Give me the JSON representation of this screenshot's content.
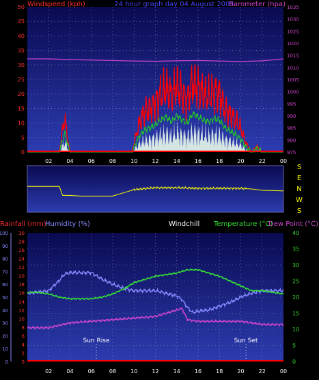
{
  "colors": {
    "bg": "#000000",
    "plot_top": "#0a0a50",
    "plot_bottom": "#2a3aa8",
    "wind": "#ff0000",
    "gust_fill": "#e8f8e8",
    "green": "#22cc22",
    "baro": "#cc44cc",
    "dir": "#ffff00",
    "axis_red": "#ff3030",
    "axis_blue": "#8888ff",
    "axis_green": "#33dd33",
    "windchill": "#ffffff",
    "zero": "#ff0000"
  },
  "x_ticks": [
    "02",
    "04",
    "06",
    "08",
    "10",
    "12",
    "14",
    "16",
    "18",
    "20",
    "22",
    "00"
  ],
  "top": {
    "title_left": "Windspeed (kph)",
    "title_center": "24 hour graph day 04 August 2005",
    "title_right": "Barometer (hpa)",
    "left_ticks": [
      "0",
      "5",
      "10",
      "15",
      "20",
      "25",
      "30",
      "35",
      "40",
      "45",
      "50"
    ],
    "right_ticks": [
      "975",
      "980",
      "985",
      "990",
      "995",
      "1000",
      "1005",
      "1010",
      "1015",
      "1020",
      "1025",
      "1030",
      "1035"
    ]
  },
  "compass": {
    "labels": [
      "S",
      "E",
      "N",
      "W",
      "S"
    ]
  },
  "bottom": {
    "title_rain": "Rainfall (mm)",
    "title_hum": "Humidity (%)",
    "title_wc": "Windchill",
    "title_temp": "Temperature (°C)",
    "title_dew": "Dew Point (°C)",
    "hum_ticks": [
      "0",
      "10",
      "20",
      "30",
      "40",
      "50",
      "60",
      "70",
      "80",
      "90",
      "100"
    ],
    "rain_ticks": [
      "0",
      "2",
      "4",
      "6",
      "8",
      "10",
      "12",
      "14",
      "16",
      "18",
      "20",
      "22",
      "24",
      "26",
      "28",
      "30"
    ],
    "temp_ticks": [
      "0",
      "5",
      "10",
      "15",
      "20",
      "25",
      "30",
      "35",
      "40"
    ],
    "sunrise": "Sun Rise",
    "sunset": "Sun Set"
  },
  "chart_data": [
    {
      "type": "line",
      "title": "24 hour graph day 04 August 2005",
      "xlabel": "",
      "ylabel": "Windspeed (kph)",
      "ylim": [
        0,
        50
      ],
      "y2label": "Barometer (hpa)",
      "y2lim": [
        975,
        1035
      ],
      "series": [
        {
          "name": "Windspeed (kph)",
          "x": [
            0,
            3,
            3.2,
            3.5,
            3.8,
            4,
            7,
            9.8,
            10,
            10.5,
            11,
            11.5,
            12,
            12.5,
            13,
            13.5,
            14,
            14.5,
            15,
            15.5,
            16,
            16.5,
            17,
            17.5,
            18,
            18.5,
            19,
            19.5,
            20,
            20.5,
            21,
            21.5,
            22,
            23,
            24
          ],
          "values": [
            0,
            0,
            5,
            12,
            4,
            0,
            0,
            0,
            3,
            10,
            14,
            15,
            17,
            20,
            22,
            19,
            23,
            20,
            18,
            24,
            22,
            20,
            19,
            21,
            20,
            15,
            13,
            11,
            8,
            3,
            0,
            2,
            0,
            0,
            0
          ]
        },
        {
          "name": "Barometer (hpa)",
          "x": [
            0,
            2,
            4,
            6,
            8,
            10,
            12,
            14,
            16,
            18,
            20,
            22,
            24
          ],
          "values": [
            1013.5,
            1013.5,
            1013.2,
            1013,
            1012.8,
            1012.6,
            1012.5,
            1012.7,
            1012.8,
            1012.6,
            1012.4,
            1012.7,
            1013.5
          ]
        }
      ]
    },
    {
      "type": "line",
      "title": "",
      "xlabel": "",
      "ylabel": "",
      "series": [
        {
          "x": [
            0,
            3,
            3.3,
            4,
            5,
            7,
            8,
            9,
            10,
            12,
            14,
            16,
            18,
            20,
            21,
            22,
            24
          ],
          "values": [
            200,
            200,
            130,
            130,
            125,
            125,
            125,
            150,
            175,
            190,
            190,
            185,
            185,
            185,
            180,
            170,
            165
          ]
        }
      ]
    },
    {
      "type": "line",
      "title": "",
      "xlabel": "",
      "ylabel": "Humidity (%)",
      "ylim": [
        0,
        100
      ],
      "y2label": "Temperature (°C)",
      "y2lim": [
        0,
        40
      ],
      "series": [
        {
          "name": "Humidity (%)",
          "x": [
            0,
            1,
            2,
            3,
            3.5,
            4,
            5,
            6,
            7,
            8,
            9,
            10,
            11,
            12,
            13,
            14,
            14.5,
            15,
            15.5,
            16,
            17,
            18,
            19,
            20,
            21,
            22,
            23,
            24
          ],
          "values": [
            53,
            54,
            55,
            63,
            68,
            69,
            69,
            69,
            64,
            60,
            57,
            55,
            55,
            55,
            53,
            51,
            48,
            42,
            38,
            39,
            40,
            43,
            46,
            50,
            53,
            55,
            55,
            55
          ]
        },
        {
          "name": "Temperature (°C)",
          "x": [
            0,
            1,
            2,
            3,
            4,
            5,
            6,
            7,
            8,
            9,
            10,
            11,
            12,
            13,
            14,
            15,
            16,
            17,
            18,
            19,
            20,
            21,
            22,
            23,
            24
          ],
          "values": [
            21.5,
            21.5,
            21,
            20,
            19.5,
            19.5,
            19.5,
            20,
            21,
            22.5,
            24.5,
            25.5,
            26.5,
            27,
            27.5,
            28.5,
            28.5,
            27.5,
            26.5,
            25,
            23.5,
            22,
            22,
            21.5,
            21
          ]
        },
        {
          "name": "Dew Point (°C)",
          "x": [
            0,
            2,
            4,
            6,
            8,
            10,
            12,
            13,
            14,
            14.5,
            15,
            16,
            18,
            20,
            22,
            24
          ],
          "values": [
            10.5,
            10.5,
            12,
            12.5,
            13,
            13.5,
            14,
            15,
            16,
            16.5,
            13,
            12.5,
            12.5,
            12.5,
            11.5,
            11.5
          ]
        },
        {
          "name": "Rainfall (mm)",
          "x": [
            0,
            24
          ],
          "values": [
            0,
            0
          ]
        }
      ]
    }
  ]
}
